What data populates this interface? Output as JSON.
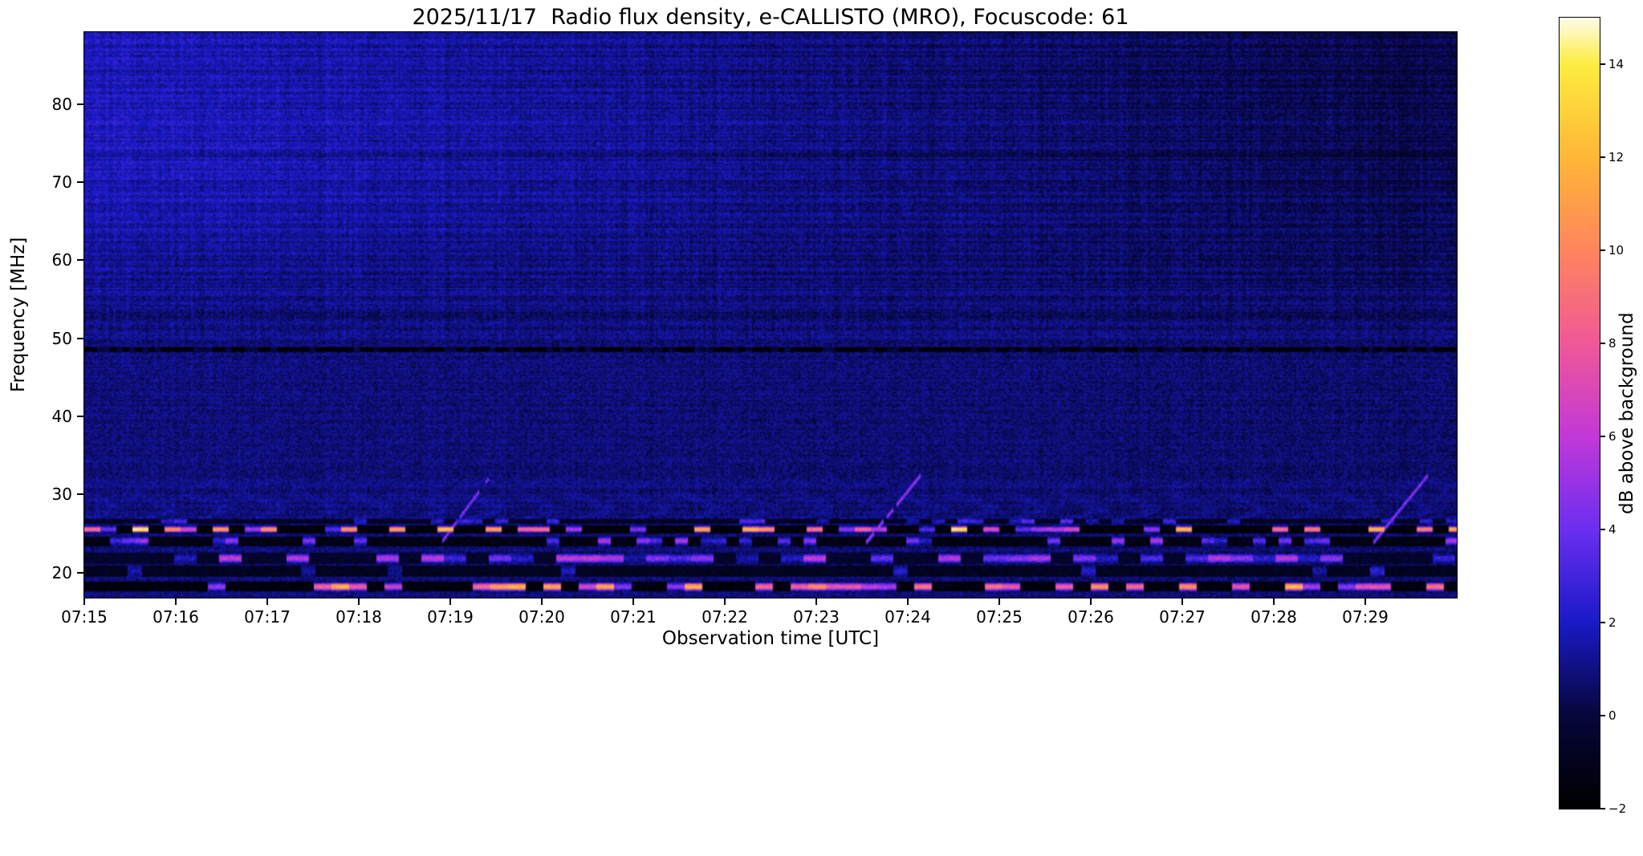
{
  "figure": {
    "title": "2025/11/17  Radio flux density, e-CALLISTO (MRO), Focuscode: 61",
    "xlabel": "Observation time [UTC]",
    "ylabel": "Frequency [MHz]",
    "colorbar_label": "dB above background"
  },
  "chart_data": {
    "type": "heatmap",
    "title": "2025/11/17  Radio flux density, e-CALLISTO (MRO), Focuscode: 61",
    "xlabel": "Observation time [UTC]",
    "ylabel": "Frequency [MHz]",
    "x_tick_labels": [
      "07:15",
      "07:16",
      "07:17",
      "07:18",
      "07:19",
      "07:20",
      "07:21",
      "07:22",
      "07:23",
      "07:24",
      "07:25",
      "07:26",
      "07:27",
      "07:28",
      "07:29"
    ],
    "x_range_minutes": [
      0,
      15
    ],
    "y_ticks_mhz": [
      20,
      30,
      40,
      50,
      60,
      70,
      80
    ],
    "y_range_mhz": [
      16.8,
      89.2
    ],
    "grid": false,
    "colorbar": {
      "label": "dB above background",
      "tick_values": [
        14,
        12,
        10,
        8,
        6,
        4,
        2,
        0,
        -2
      ],
      "tick_labels": [
        "14",
        "12",
        "10",
        "8",
        "6",
        "4",
        "2",
        "0",
        "−2"
      ],
      "range": [
        -2,
        15
      ]
    },
    "colormap_stops": [
      {
        "value": -2,
        "color": "#000000"
      },
      {
        "value": 0,
        "color": "#06063c"
      },
      {
        "value": 2,
        "color": "#1a1ac8"
      },
      {
        "value": 4,
        "color": "#6c2ef0"
      },
      {
        "value": 6,
        "color": "#c238d8"
      },
      {
        "value": 8,
        "color": "#f05898"
      },
      {
        "value": 10,
        "color": "#ff855e"
      },
      {
        "value": 12,
        "color": "#ffb637"
      },
      {
        "value": 14,
        "color": "#fdec3f"
      },
      {
        "value": 15,
        "color": "#fffbe8"
      }
    ],
    "background_db": {
      "base": 0.65,
      "noise_amp": 1.3,
      "left_boost": 0.25,
      "top_left_boost": 1.0,
      "top_right_drop": -0.6
    },
    "features": {
      "description": "Quiet-sun radio spectrogram: blue background brightest at upper left fading darker to the right, uniform dark navy mid-band, dashed dark interference notch near 48.5 MHz, strong intermittent terrestrial RFI bands below 27 MHz with orange/yellow bursts near 25 MHz and 18 MHz, and three slanted ionosonde sweeps rising from ~24 to ~32 MHz near 07:19, 07:24 and 07:29.",
      "dark_line": {
        "f": 48.55,
        "half": 0.33,
        "dash": 0.6,
        "level": -1.7
      },
      "bands": [
        {
          "id": 1,
          "f0": 26.1,
          "f1": 26.9,
          "p": 0.22,
          "lo": 1.5,
          "hi": 4,
          "base": -0.7,
          "seg": 8
        },
        {
          "id": 2,
          "f0": 25.0,
          "f1": 25.95,
          "p": 0.5,
          "lo": 3,
          "hi": 15,
          "base": -1.6,
          "seg": 10
        },
        {
          "id": 3,
          "f0": 23.4,
          "f1": 24.6,
          "p": 0.28,
          "lo": 2,
          "hi": 6,
          "base": -1.3,
          "seg": 8
        },
        {
          "id": 4,
          "f0": 21.1,
          "f1": 22.4,
          "p": 0.55,
          "lo": 1.5,
          "hi": 6.5,
          "base": -0.5,
          "seg": 14
        },
        {
          "id": 5,
          "f0": 19.3,
          "f1": 20.9,
          "p": 0.13,
          "lo": 1,
          "hi": 2.8,
          "base": -0.9,
          "seg": 9
        },
        {
          "id": 6,
          "f0": 17.5,
          "f1": 18.7,
          "p": 0.42,
          "lo": 3,
          "hi": 13,
          "base": -1.5,
          "seg": 11
        }
      ],
      "chirps": [
        {
          "t0": 3.9,
          "f0": 23.8,
          "f1": 32.5,
          "dur": 0.55,
          "halfw": 0.45,
          "amp": 6
        },
        {
          "t0": 8.55,
          "f0": 23.8,
          "f1": 32.5,
          "dur": 0.6,
          "halfw": 0.45,
          "amp": 6.5
        },
        {
          "t0": 14.1,
          "f0": 23.8,
          "f1": 32.5,
          "dur": 0.6,
          "halfw": 0.45,
          "amp": 6
        }
      ]
    }
  }
}
